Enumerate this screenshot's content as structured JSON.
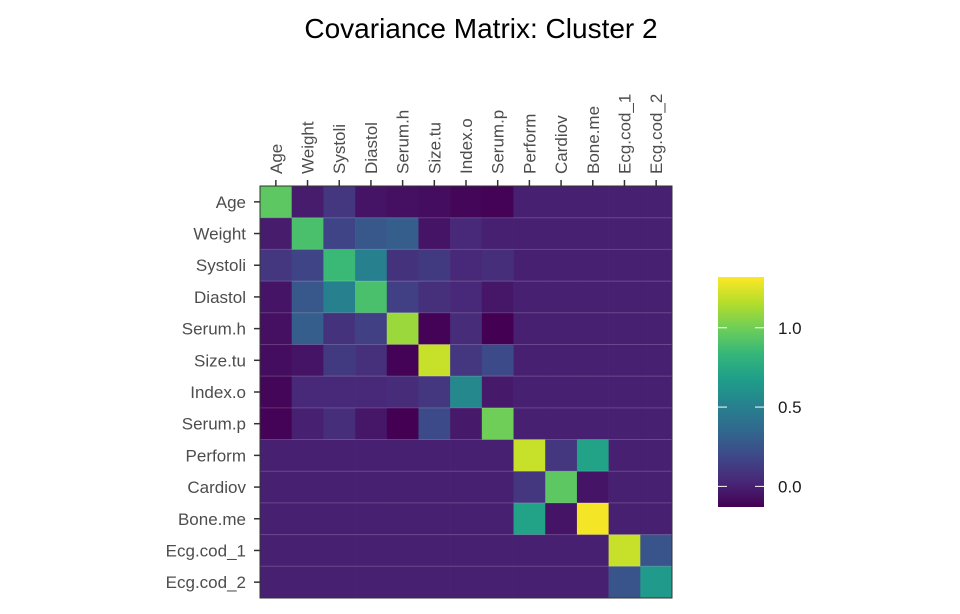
{
  "chart_data": {
    "type": "heatmap",
    "title": "Covariance Matrix: Cluster 2",
    "xlabel": "",
    "ylabel": "",
    "x_labels": [
      "Age",
      "Weight",
      "Systoli",
      "Diastol",
      "Serum.h",
      "Size.tu",
      "Index.o",
      "Serum.p",
      "Perform",
      "Cardiov",
      "Bone.me",
      "Ecg.cod_1",
      "Ecg.cod_2"
    ],
    "y_labels": [
      "Age",
      "Weight",
      "Systoli",
      "Diastol",
      "Serum.h",
      "Size.tu",
      "Index.o",
      "Serum.p",
      "Perform",
      "Cardiov",
      "Bone.me",
      "Ecg.cod_1",
      "Ecg.cod_2"
    ],
    "values": [
      [
        0.95,
        -0.02,
        0.1,
        -0.05,
        -0.07,
        -0.08,
        -0.11,
        -0.12,
        0.0,
        0.0,
        0.0,
        0.0,
        0.0
      ],
      [
        -0.02,
        0.9,
        0.17,
        0.27,
        0.3,
        -0.05,
        0.03,
        0.0,
        0.0,
        0.0,
        0.0,
        0.0,
        0.0
      ],
      [
        0.1,
        0.17,
        0.85,
        0.5,
        0.08,
        0.12,
        0.03,
        0.06,
        0.0,
        0.0,
        0.0,
        0.0,
        0.0
      ],
      [
        -0.05,
        0.27,
        0.5,
        0.9,
        0.15,
        0.07,
        0.03,
        -0.04,
        0.0,
        0.0,
        0.0,
        0.0,
        0.0
      ],
      [
        -0.07,
        0.3,
        0.08,
        0.15,
        1.1,
        -0.12,
        0.05,
        -0.13,
        0.0,
        0.0,
        0.0,
        0.0,
        0.0
      ],
      [
        -0.08,
        -0.05,
        0.12,
        0.07,
        -0.12,
        1.2,
        0.1,
        0.2,
        0.0,
        0.0,
        0.0,
        0.0,
        0.0
      ],
      [
        -0.11,
        0.03,
        0.03,
        0.03,
        0.05,
        0.1,
        0.55,
        -0.03,
        0.0,
        0.0,
        0.0,
        0.0,
        0.0
      ],
      [
        -0.12,
        0.0,
        0.06,
        -0.04,
        -0.13,
        0.2,
        -0.03,
        1.0,
        0.0,
        0.0,
        0.0,
        0.0,
        0.0
      ],
      [
        0.0,
        0.0,
        0.0,
        0.0,
        0.0,
        0.0,
        0.0,
        0.0,
        1.2,
        0.1,
        0.7,
        0.0,
        0.0
      ],
      [
        0.0,
        0.0,
        0.0,
        0.0,
        0.0,
        0.0,
        0.0,
        0.0,
        0.1,
        0.95,
        -0.05,
        0.0,
        0.0
      ],
      [
        0.0,
        0.0,
        0.0,
        0.0,
        0.0,
        0.0,
        0.0,
        0.0,
        0.7,
        -0.05,
        1.3,
        0.0,
        0.0
      ],
      [
        0.0,
        0.0,
        0.0,
        0.0,
        0.0,
        0.0,
        0.0,
        0.0,
        0.0,
        0.0,
        0.0,
        1.2,
        0.25
      ],
      [
        0.0,
        0.0,
        0.0,
        0.0,
        0.0,
        0.0,
        0.0,
        0.0,
        0.0,
        0.0,
        0.0,
        0.25,
        0.65
      ]
    ],
    "color_scale": {
      "name": "viridis",
      "range": [
        -0.13,
        1.32
      ],
      "colors": [
        "#440154",
        "#482878",
        "#3e4989",
        "#31688e",
        "#26828e",
        "#1f9e89",
        "#35b779",
        "#6ece58",
        "#b5de2b",
        "#fde725"
      ]
    },
    "legend": {
      "position": "right",
      "ticks": [
        "0.0",
        "0.5",
        "1.0"
      ],
      "tick_values": [
        0.0,
        0.5,
        1.0
      ]
    },
    "grid": false
  }
}
